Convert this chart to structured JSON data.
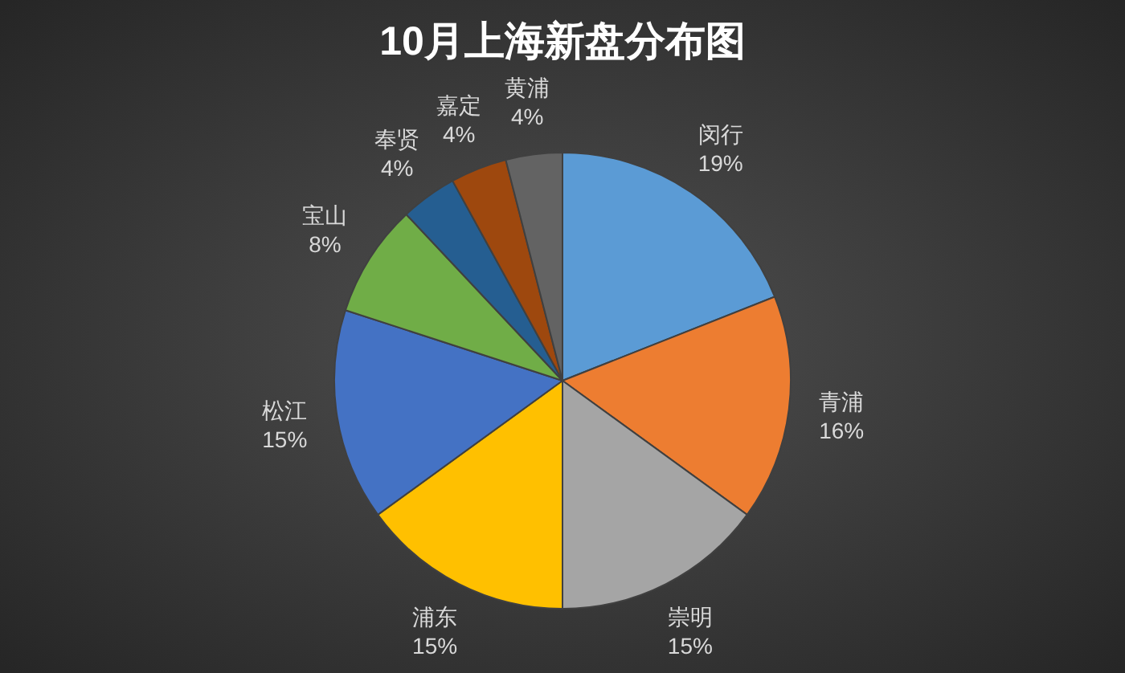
{
  "chart_data": {
    "type": "pie",
    "title": "10月上海新盘分布图",
    "categories": [
      "闵行",
      "青浦",
      "崇明",
      "浦东",
      "松江",
      "宝山",
      "奉贤",
      "嘉定",
      "黄浦"
    ],
    "values": [
      19,
      16,
      15,
      15,
      15,
      8,
      4,
      4,
      4
    ],
    "colors": [
      "#5b9bd5",
      "#ed7d31",
      "#a5a5a5",
      "#ffc000",
      "#4472c4",
      "#70ad47",
      "#255e91",
      "#9e480e",
      "#636363"
    ],
    "value_labels": [
      "19%",
      "16%",
      "15%",
      "15%",
      "15%",
      "8%",
      "4%",
      "4%",
      "4%"
    ]
  }
}
